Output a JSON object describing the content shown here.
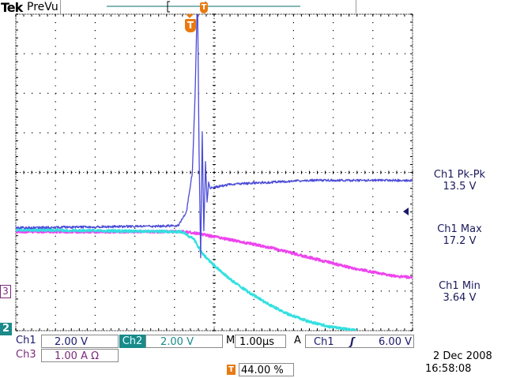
{
  "header": {
    "brand": "Tek",
    "status": "PreVu"
  },
  "colors": {
    "ch1": "#4a4ad8",
    "ch2": "#33e0e0",
    "ch3": "#ee44ee",
    "trigger": "#e87a10",
    "ch2_badge": "#1a8a8a",
    "text_ch1": "#1a1a6c",
    "text_ch3": "#7a2a7a"
  },
  "markers": {
    "ch2": "2",
    "ch3": "3",
    "trigger": "T"
  },
  "measurements": [
    {
      "label": "Ch1 Pk-Pk",
      "value": "13.5 V"
    },
    {
      "label": "Ch1 Max",
      "value": "17.2 V"
    },
    {
      "label": "Ch1 Min",
      "value": "3.64 V"
    }
  ],
  "readouts": {
    "ch1_label": "Ch1",
    "ch1_scale": "2.00 V",
    "ch2_label": "Ch2",
    "ch2_scale": "2.00 V",
    "ch3_label": "Ch3",
    "ch3_scale": "1.00 A Ω",
    "time_label": "M",
    "time_scale": "1.00µs",
    "trig_mode": "A",
    "trig_source": "Ch1",
    "trig_slope": "rising-edge-icon",
    "trig_level": "6.00 V",
    "trig_position": "44.00 %",
    "date": "2 Dec  2008",
    "time": "16:58:08"
  },
  "chart_data": {
    "type": "line",
    "xlabel": "",
    "ylabel": "",
    "x_unit": "µs",
    "x_per_div": 1.0,
    "xlim": [
      -4.4,
      5.6
    ],
    "divisions": {
      "x": 10,
      "y": 8
    },
    "grid": true,
    "series": [
      {
        "name": "Ch1",
        "unit": "V",
        "per_div": 2.0,
        "ground_div_from_bottom": 0,
        "x": [
          -4.4,
          -0.3,
          -0.1,
          0.05,
          0.12,
          0.18,
          0.22,
          0.26,
          0.3,
          0.34,
          0.38,
          0.42,
          0.46,
          0.5,
          1,
          3,
          5.6
        ],
        "y": [
          5.2,
          5.3,
          6,
          8,
          12,
          17.2,
          9,
          3.64,
          10,
          5,
          8.5,
          6.5,
          7.5,
          7.2,
          7.4,
          7.6,
          7.6
        ]
      },
      {
        "name": "Ch2",
        "unit": "V",
        "per_div": 2.0,
        "ground_div_from_bottom": 0,
        "x": [
          -4.4,
          -0.2,
          0.1,
          0.3,
          0.6,
          1,
          1.5,
          2,
          2.5,
          3,
          3.5,
          4.2
        ],
        "y": [
          5.1,
          5.0,
          4.6,
          3.9,
          3.3,
          2.6,
          1.9,
          1.3,
          0.8,
          0.45,
          0.2,
          0
        ]
      },
      {
        "name": "Ch3",
        "unit": "A",
        "per_div": 1.0,
        "ground_div_from_bottom": 1,
        "x": [
          -4.4,
          -0.1,
          0.2,
          1,
          2,
          3,
          4,
          5,
          5.6
        ],
        "y": [
          1.5,
          1.5,
          1.45,
          1.3,
          1.1,
          0.85,
          0.6,
          0.4,
          0.34
        ]
      }
    ],
    "trigger": {
      "position_percent": 44,
      "level": 6.0,
      "source": "Ch1"
    }
  }
}
